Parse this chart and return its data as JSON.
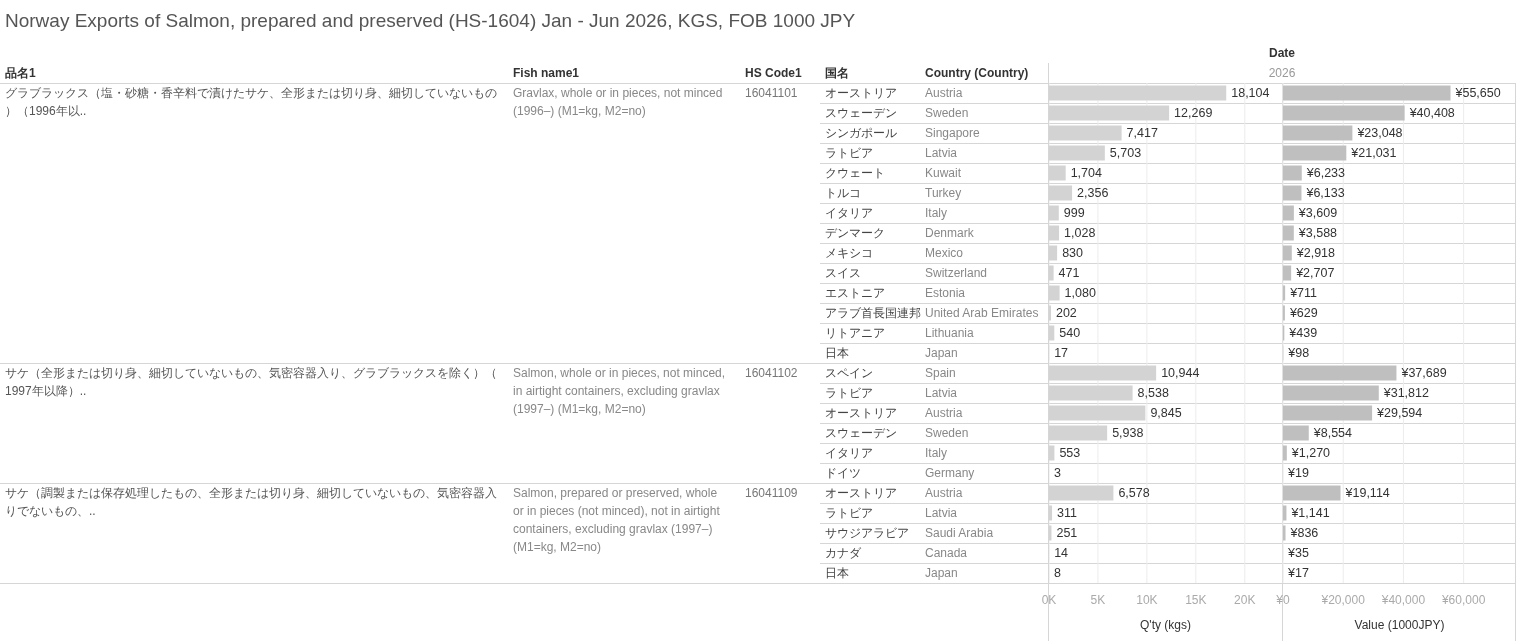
{
  "chart_data": [
    {
      "type": "other",
      "title": "Norway Exports of Salmon, prepared and preserved (HS-1604) Jan - Jun 2026, KGS, FOB 1000 JPY",
      "categories": [
        "品名1",
        "Fish name1",
        "HS Code1",
        "国名"
      ],
      "annotations": [
        "Date",
        "2026"
      ],
      "cell_labels": [
        [
          "グラブラックス（塩・砂糖・香辛料で漬けたサケ、全形または切り身、細切していないもの）（1996年以..",
          "Gravlax, whole or in pieces, not minced (1996–) (M1=kg, M2=no)",
          "16041101",
          "オーストリア"
        ],
        [
          null,
          null,
          null,
          "スウェーデン"
        ],
        [
          null,
          null,
          null,
          "シンガポール"
        ],
        [
          null,
          null,
          null,
          "ラトビア"
        ],
        [
          null,
          null,
          null,
          "クウェート"
        ],
        [
          null,
          null,
          null,
          "トルコ"
        ],
        [
          null,
          null,
          null,
          "イタリア"
        ],
        [
          null,
          null,
          null,
          "デンマーク"
        ],
        [
          null,
          null,
          null,
          "メキシコ"
        ],
        [
          null,
          null,
          null,
          "スイス"
        ],
        [
          null,
          null,
          null,
          "エストニア"
        ],
        [
          null,
          null,
          null,
          "アラブ首長国連邦"
        ],
        [
          null,
          null,
          null,
          "リトアニア"
        ],
        [
          null,
          null,
          null,
          "日本"
        ],
        [
          "サケ（全形または切り身、細切していないもの、気密容器入り、グラブラックスを除く）（1997年以降）..",
          "Salmon, whole or in pieces, not minced, in airtight containers, excluding gravlax (1997–) (M1=kg, M2=no)",
          "16041102",
          "スペイン"
        ],
        [
          null,
          null,
          null,
          "ラトビア"
        ],
        [
          null,
          null,
          null,
          "オーストリア"
        ],
        [
          null,
          null,
          null,
          "スウェーデン"
        ],
        [
          null,
          null,
          null,
          "イタリア"
        ],
        [
          null,
          null,
          null,
          "ドイツ"
        ],
        [
          "サケ（調製または保存処理したもの、全形または切り身、細切していないもの、気密容器入りでないもの、..",
          "Salmon, prepared or preserved, whole or in pieces (not minced), not in airtight containers, excluding gravlax (1997–) (M1=kg, M2=no)",
          "16041109",
          "オーストリア"
        ],
        [
          null,
          null,
          null,
          "ラトビア"
        ],
        [
          null,
          null,
          null,
          "サウジアラビア"
        ],
        [
          null,
          null,
          null,
          "カナダ"
        ],
        [
          null,
          null,
          null,
          "日本"
        ]
      ]
    },
    {
      "type": "bar",
      "orientation": "horizontal",
      "ylabel": "Country (Country)",
      "xlabel": "Q'ty (kgs)",
      "color": "#d3d3d3",
      "grid": "x",
      "categories": [
        "Austria",
        "Sweden",
        "Singapore",
        "Latvia",
        "Kuwait",
        "Turkey",
        "Italy",
        "Denmark",
        "Mexico",
        "Switzerland",
        "Estonia",
        "United Arab Emirates",
        "Lithuania",
        "Japan",
        "Spain",
        "Latvia",
        "Austria",
        "Sweden",
        "Italy",
        "Germany",
        "Austria",
        "Latvia",
        "Saudi Arabia",
        "Canada",
        "Japan"
      ],
      "values": [
        18104,
        12269,
        7417,
        5703,
        1704,
        2356,
        999,
        1028,
        830,
        471,
        1080,
        202,
        540,
        17,
        10944,
        8538,
        9845,
        5938,
        553,
        3,
        6578,
        311,
        251,
        14,
        8
      ],
      "value_labels": [
        "18,104",
        "12,269",
        "7,417",
        "5,703",
        "1,704",
        "2,356",
        "999",
        "1,028",
        "830",
        "471",
        "1,080",
        "202",
        "540",
        "17",
        "10,944",
        "8,538",
        "9,845",
        "5,938",
        "553",
        "3",
        "6,578",
        "311",
        "251",
        "14",
        "8"
      ],
      "xlim": [
        0,
        23800
      ],
      "xticks": [
        {
          "value": 0,
          "label": "0K"
        },
        {
          "value": 5000,
          "label": "5K"
        },
        {
          "value": 10000,
          "label": "10K"
        },
        {
          "value": 15000,
          "label": "15K"
        },
        {
          "value": 20000,
          "label": "20K"
        }
      ]
    },
    {
      "type": "bar",
      "orientation": "horizontal",
      "xlabel": "Value (1000JPY)",
      "color": "#bfbfbf",
      "grid": "x",
      "categories": [
        null,
        null,
        null,
        null,
        null,
        null,
        null,
        null,
        null,
        null,
        null,
        null,
        null,
        null,
        null,
        null,
        null,
        null,
        null,
        null,
        null,
        null,
        null,
        null,
        null
      ],
      "values": [
        55650,
        40408,
        23048,
        21031,
        6233,
        6133,
        3609,
        3588,
        2918,
        2707,
        711,
        629,
        439,
        98,
        37689,
        31812,
        29594,
        8554,
        1270,
        19,
        19114,
        1141,
        836,
        35,
        17
      ],
      "value_labels": [
        "¥55,650",
        "¥40,408",
        "¥23,048",
        "¥21,031",
        "¥6,233",
        "¥6,133",
        "¥3,609",
        "¥3,588",
        "¥2,918",
        "¥2,707",
        "¥711",
        "¥629",
        "¥439",
        "¥98",
        "¥37,689",
        "¥31,812",
        "¥29,594",
        "¥8,554",
        "¥1,270",
        "¥19",
        "¥19,114",
        "¥1,141",
        "¥836",
        "¥35",
        "¥17"
      ],
      "xlim": [
        0,
        77400
      ],
      "xticks": [
        {
          "value": 0,
          "label": "¥0"
        },
        {
          "value": 20000,
          "label": "¥20,000"
        },
        {
          "value": 40000,
          "label": "¥40,000"
        },
        {
          "value": 60000,
          "label": "¥60,000"
        }
      ]
    }
  ]
}
